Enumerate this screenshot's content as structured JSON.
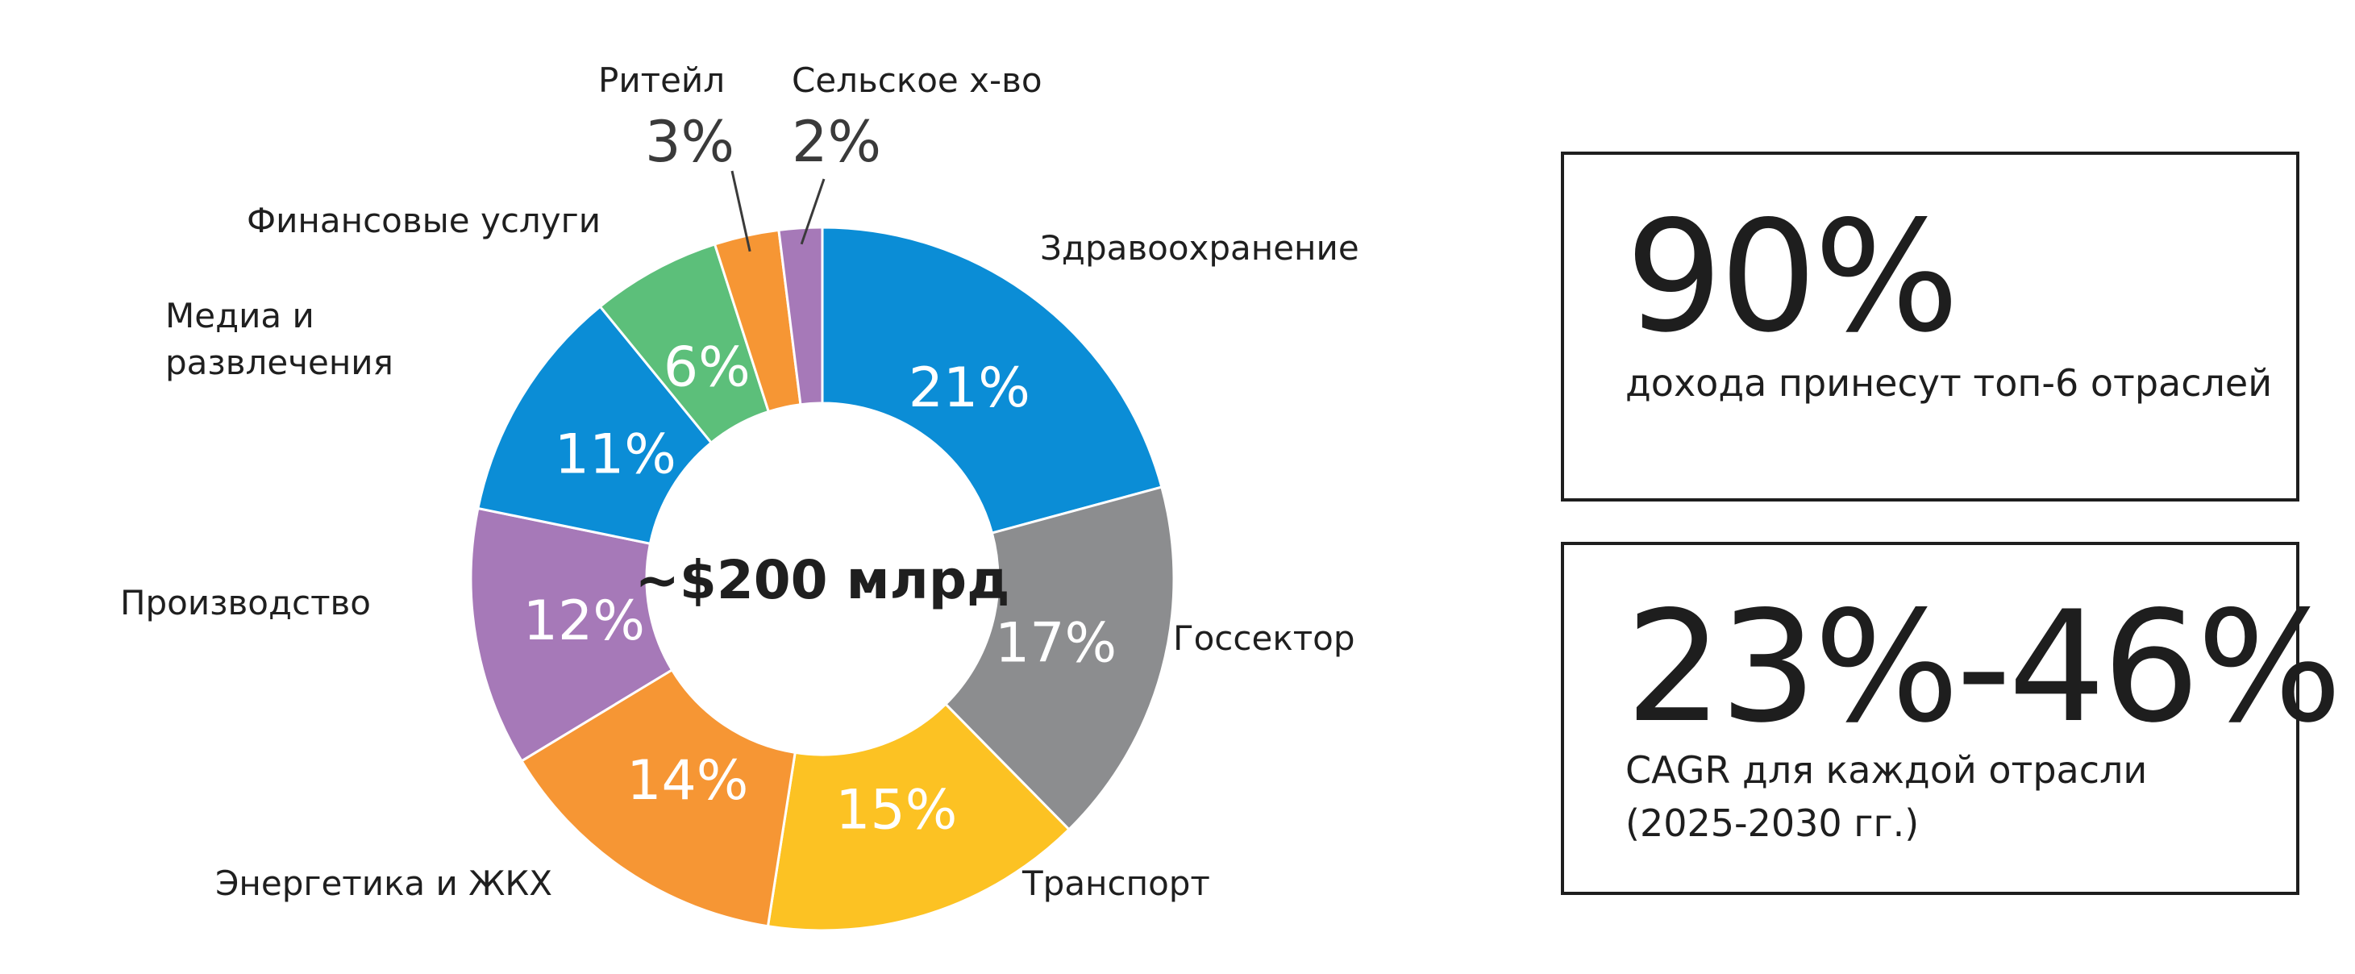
{
  "chart_data": {
    "type": "pie",
    "variant": "donut",
    "center_label": "~$200 млрд",
    "slices": [
      {
        "label": "Здравоохранение",
        "value": 21,
        "value_label": "21%",
        "color": "#0b8dd6"
      },
      {
        "label": "Госсектор",
        "value": 17,
        "value_label": "17%",
        "color": "#8c8d8f"
      },
      {
        "label": "Транспорт",
        "value": 15,
        "value_label": "15%",
        "color": "#fcc223"
      },
      {
        "label": "Энергетика и ЖКХ",
        "value": 14,
        "value_label": "14%",
        "color": "#f69634"
      },
      {
        "label": "Производство",
        "value": 12,
        "value_label": "12%",
        "color": "#a679b8"
      },
      {
        "label": "Медиа и развлечения",
        "label_lines": [
          "Медиа и",
          "развлечения"
        ],
        "value": 11,
        "value_label": "11%",
        "color": "#0b8dd6"
      },
      {
        "label": "Финансовые услуги",
        "value": 6,
        "value_label": "6%",
        "color": "#5cbf7a"
      },
      {
        "label": "Ритейл",
        "value": 3,
        "value_label": "3%",
        "color": "#f69634"
      },
      {
        "label": "Сельское х-во",
        "value": 2,
        "value_label": "2%",
        "color": "#a679b8"
      }
    ]
  },
  "stats": [
    {
      "value": "90%",
      "caption_lines": [
        "дохода принесут топ-6 отраслей"
      ]
    },
    {
      "value": "23%-46%",
      "caption_lines": [
        "CAGR для каждой отрасли",
        "(2025-2030 гг.)"
      ]
    }
  ]
}
